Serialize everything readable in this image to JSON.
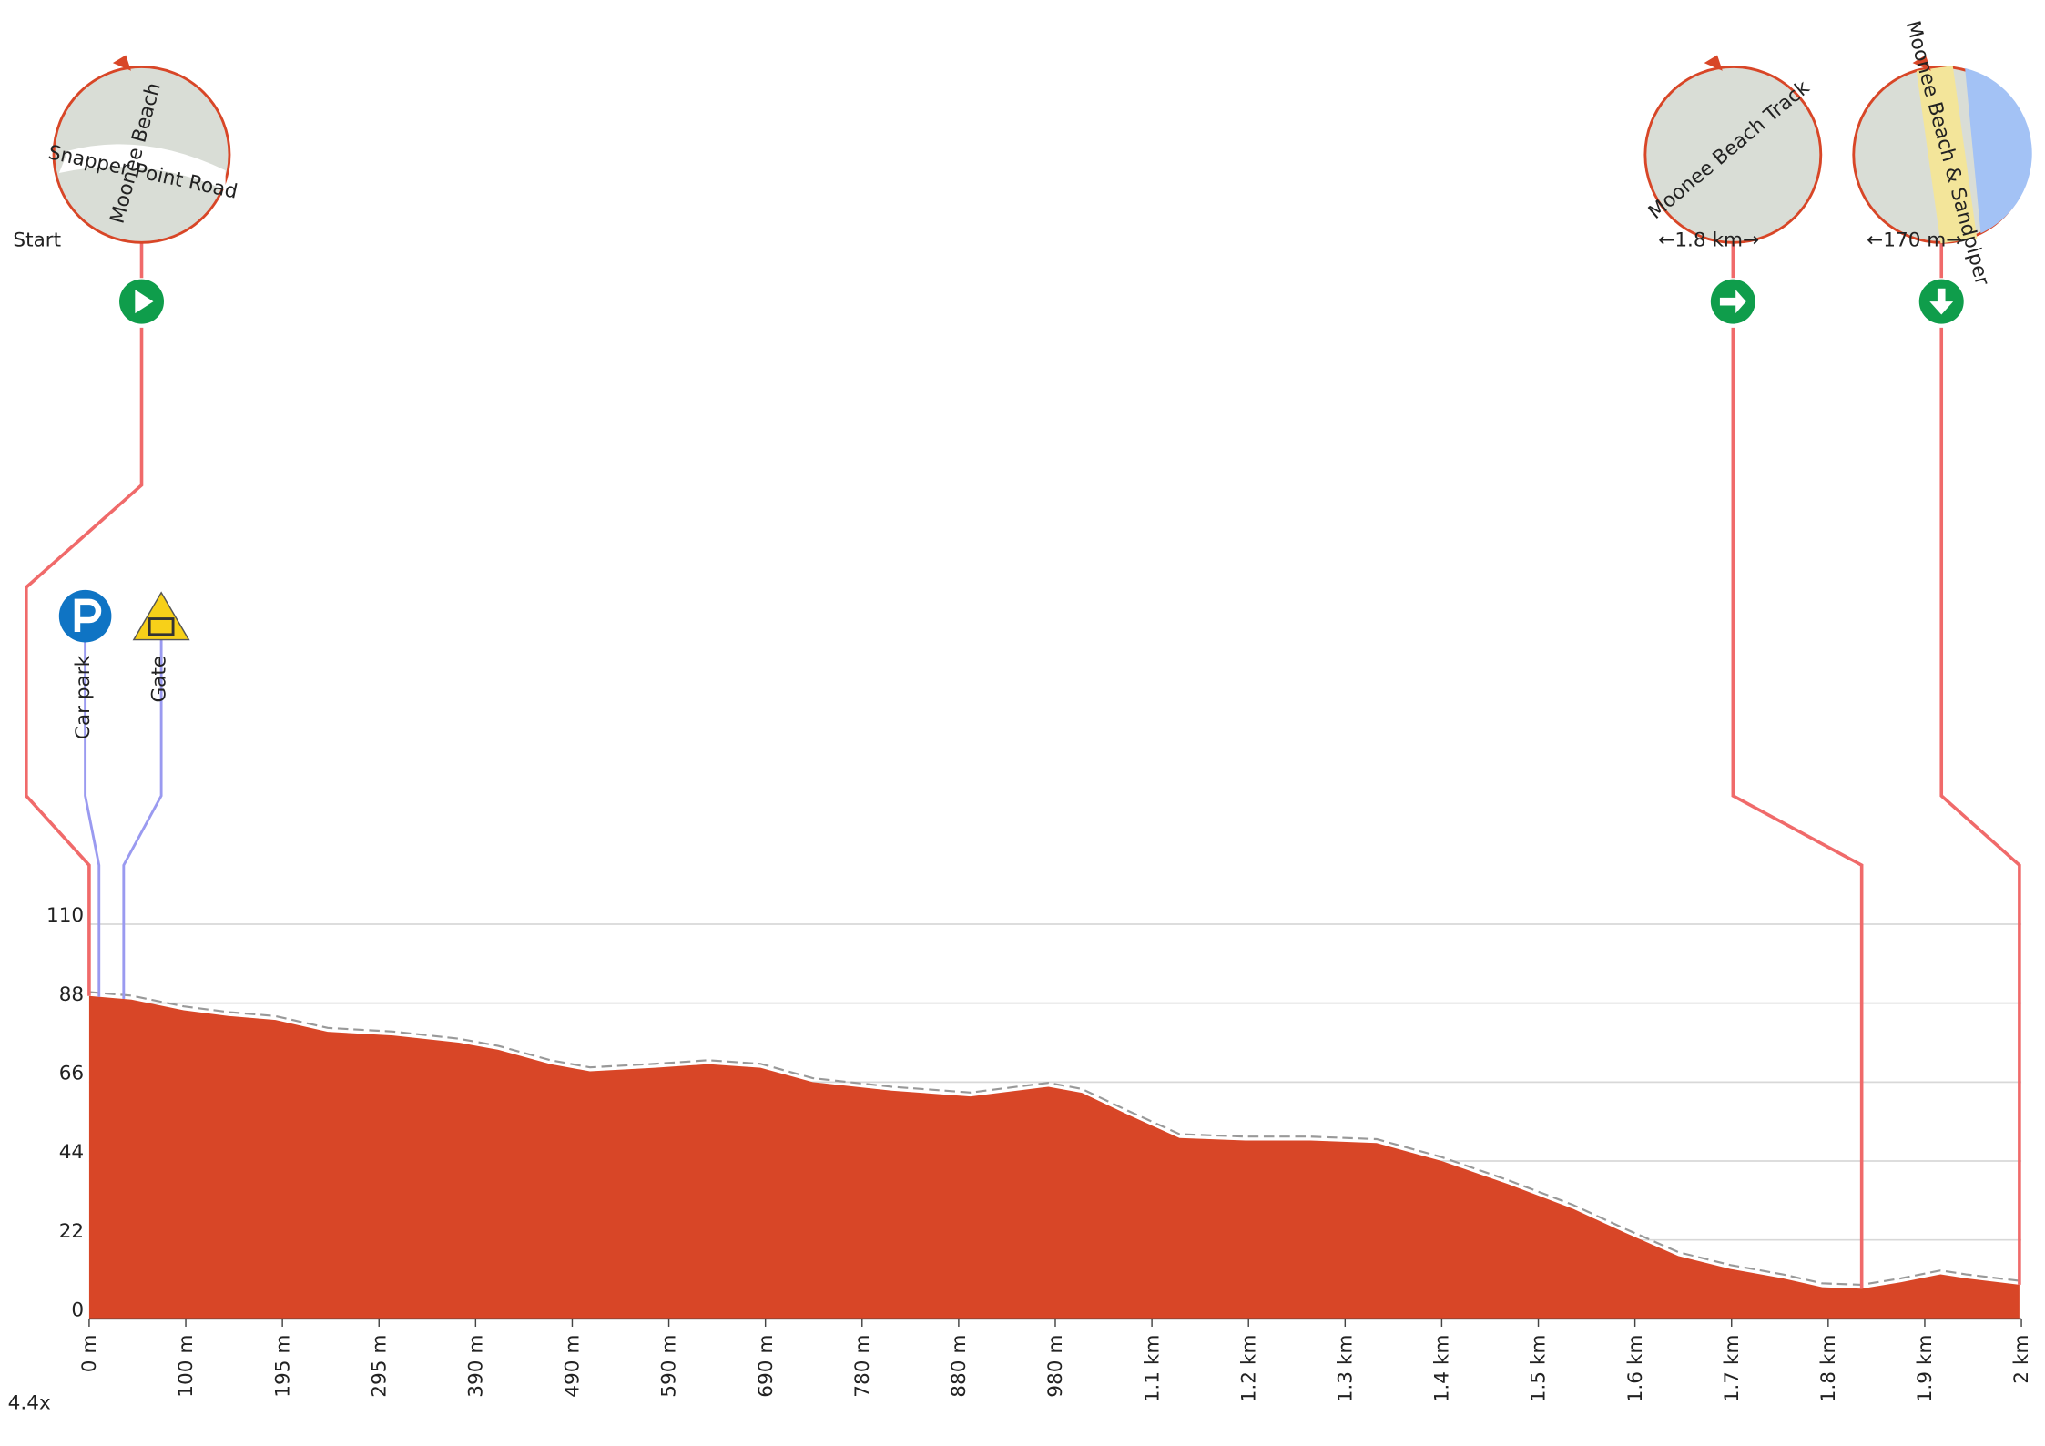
{
  "chart_data": {
    "type": "area",
    "zoom_label": "4.4x",
    "color": "#d84627",
    "xlim": [
      0,
      1960
    ],
    "ylim": [
      0,
      110
    ],
    "yticks": [
      0,
      22,
      44,
      66,
      88,
      110
    ],
    "grid": true,
    "xticks": [
      {
        "value": 0,
        "label": "0 m"
      },
      {
        "value": 98,
        "label": "100 m"
      },
      {
        "value": 196,
        "label": "195 m"
      },
      {
        "value": 294,
        "label": "295 m"
      },
      {
        "value": 392,
        "label": "390 m"
      },
      {
        "value": 490,
        "label": "490 m"
      },
      {
        "value": 588,
        "label": "590 m"
      },
      {
        "value": 686,
        "label": "690 m"
      },
      {
        "value": 784,
        "label": "780 m"
      },
      {
        "value": 882,
        "label": "880 m"
      },
      {
        "value": 980,
        "label": "980 m"
      },
      {
        "value": 1078,
        "label": "1.1 km"
      },
      {
        "value": 1176,
        "label": "1.2 km"
      },
      {
        "value": 1274,
        "label": "1.3 km"
      },
      {
        "value": 1372,
        "label": "1.4 km"
      },
      {
        "value": 1470,
        "label": "1.5 km"
      },
      {
        "value": 1568,
        "label": "1.6 km"
      },
      {
        "value": 1666,
        "label": "1.7 km"
      },
      {
        "value": 1764,
        "label": "1.8 km"
      },
      {
        "value": 1862,
        "label": "1.9 km"
      },
      {
        "value": 1960,
        "label": "2 km"
      }
    ],
    "x": [
      0,
      43,
      96,
      142,
      189,
      242,
      308,
      375,
      415,
      468,
      508,
      574,
      628,
      681,
      734,
      814,
      894,
      973,
      1007,
      1053,
      1106,
      1173,
      1239,
      1306,
      1372,
      1439,
      1505,
      1558,
      1612,
      1665,
      1718,
      1758,
      1798,
      1838,
      1878,
      1904,
      1958
    ],
    "values": [
      90,
      89,
      86,
      84.4,
      83.3,
      80,
      79,
      77,
      75,
      71,
      69,
      70,
      71,
      70,
      66,
      63.6,
      62,
      64.7,
      63,
      57,
      50.4,
      49.7,
      49.7,
      49,
      44,
      37.6,
      30.7,
      24,
      17.5,
      13.9,
      11.3,
      8.8,
      8.4,
      10.2,
      12.4,
      11.3,
      9.5
    ],
    "turns": [
      {
        "distance": 0,
        "label": "Start",
        "icon": "start",
        "icon_x": 108,
        "map_labels": [
          "Moonee Beach",
          "Snapper Point Road"
        ]
      },
      {
        "distance": 1798,
        "label": "←1.8 km→",
        "icon": "right",
        "icon_x": 1322,
        "map_labels": [
          "Moonee Beach Track"
        ]
      },
      {
        "distance": 1958,
        "label": "←170 m→",
        "icon": "down",
        "icon_x": 1481,
        "map_labels": [
          "Moonee Beach & Sandpiper"
        ]
      }
    ],
    "pois": [
      {
        "distance": 10,
        "label": "Car park",
        "icon": "parking",
        "icon_x": 65
      },
      {
        "distance": 35,
        "label": "Gate",
        "icon": "gate",
        "icon_x": 123
      }
    ]
  }
}
